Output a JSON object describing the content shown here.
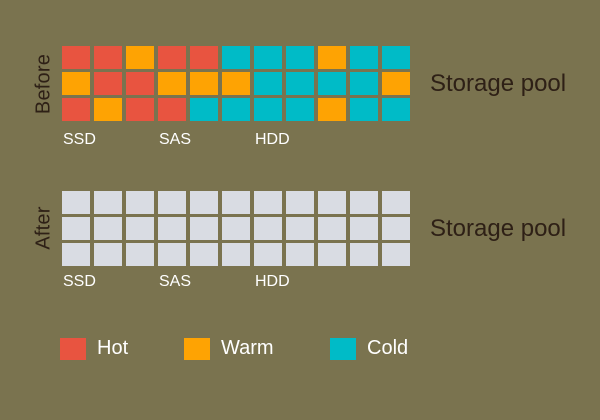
{
  "colors": {
    "background": "#7a734f",
    "hot": "#e85440",
    "warm": "#fea303",
    "cold": "#00bbc7",
    "empty": "#d9dce3",
    "dark_text": "#2e2016",
    "light_text": "#ffffff"
  },
  "sections": [
    {
      "id": "before",
      "side_label": "Before",
      "pool_label": "Storage pool",
      "tier_labels": [
        {
          "text": "SSD",
          "col": 0
        },
        {
          "text": "SAS",
          "col": 3
        },
        {
          "text": "HDD",
          "col": 6
        }
      ],
      "grid": {
        "rows": 3,
        "cols": 11,
        "cells": [
          [
            "hot",
            "hot",
            "warm",
            "hot",
            "hot",
            "cold",
            "cold",
            "cold",
            "warm",
            "cold",
            "cold"
          ],
          [
            "warm",
            "hot",
            "hot",
            "warm",
            "warm",
            "warm",
            "cold",
            "cold",
            "cold",
            "cold",
            "warm"
          ],
          [
            "hot",
            "warm",
            "hot",
            "hot",
            "cold",
            "cold",
            "cold",
            "cold",
            "warm",
            "cold",
            "cold"
          ]
        ]
      }
    },
    {
      "id": "after",
      "side_label": "After",
      "pool_label": "Storage pool",
      "tier_labels": [
        {
          "text": "SSD",
          "col": 0
        },
        {
          "text": "SAS",
          "col": 3
        },
        {
          "text": "HDD",
          "col": 6
        }
      ],
      "grid": {
        "rows": 3,
        "cols": 11,
        "cells": [
          [
            "empty",
            "empty",
            "empty",
            "empty",
            "empty",
            "empty",
            "empty",
            "empty",
            "empty",
            "empty",
            "empty"
          ],
          [
            "empty",
            "empty",
            "empty",
            "empty",
            "empty",
            "empty",
            "empty",
            "empty",
            "empty",
            "empty",
            "empty"
          ],
          [
            "empty",
            "empty",
            "empty",
            "empty",
            "empty",
            "empty",
            "empty",
            "empty",
            "empty",
            "empty",
            "empty"
          ]
        ]
      }
    }
  ],
  "legend": [
    {
      "label": "Hot",
      "color_key": "hot"
    },
    {
      "label": "Warm",
      "color_key": "warm"
    },
    {
      "label": "Cold",
      "color_key": "cold"
    }
  ]
}
